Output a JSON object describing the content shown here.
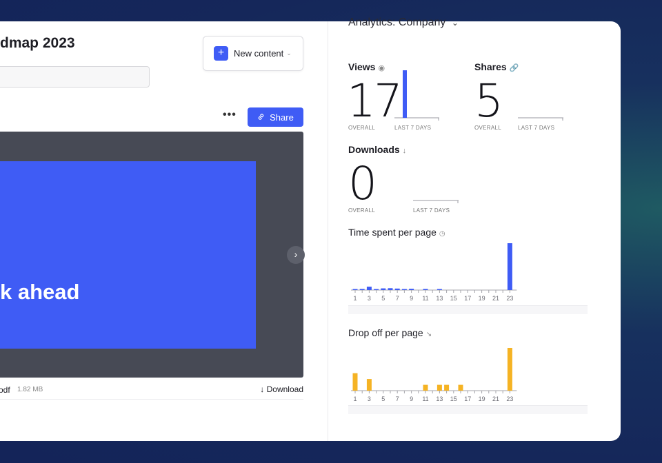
{
  "document": {
    "title": "dmap 2023",
    "slide_text": "k ahead",
    "file_name": "odf",
    "file_size": "1.82 MB",
    "download_label": "Download",
    "more_label": "•••"
  },
  "toolbar": {
    "new_content_label": "New content",
    "share_label": "Share"
  },
  "analytics": {
    "title": "Analytics: Company",
    "views": {
      "label": "Views",
      "overall": "17",
      "overall_caption": "OVERALL",
      "last7_caption": "LAST 7 DAYS",
      "last7_value": 17
    },
    "shares": {
      "label": "Shares",
      "overall": "5",
      "overall_caption": "OVERALL",
      "last7_caption": "LAST 7 DAYS",
      "last7_value": 0
    },
    "downloads": {
      "label": "Downloads",
      "overall": "0",
      "overall_caption": "OVERALL",
      "last7_caption": "LAST 7 DAYS",
      "last7_value": 0
    }
  },
  "colors": {
    "accent": "#3f5cf5",
    "drop_off": "#f5b324",
    "card_bg": "#ffffff"
  },
  "chart_data": [
    {
      "type": "bar",
      "title": "Time spent per page",
      "x": [
        1,
        2,
        3,
        4,
        5,
        6,
        7,
        8,
        9,
        10,
        11,
        12,
        13,
        14,
        15,
        16,
        17,
        18,
        19,
        20,
        21,
        22,
        23
      ],
      "x_tick_labels": [
        "1",
        "3",
        "5",
        "7",
        "9",
        "11",
        "13",
        "15",
        "17",
        "19",
        "21",
        "23"
      ],
      "values": [
        0.3,
        0.6,
        1.8,
        0.5,
        0.9,
        1.0,
        0.8,
        0.5,
        0.7,
        0,
        0.6,
        0,
        0.3,
        0,
        0,
        0,
        0,
        0,
        0,
        0,
        0,
        0,
        25
      ],
      "ylim": [
        0,
        25
      ],
      "color": "#3f5cf5",
      "grid": false
    },
    {
      "type": "bar",
      "title": "Drop off per page",
      "x": [
        1,
        2,
        3,
        4,
        5,
        6,
        7,
        8,
        9,
        10,
        11,
        12,
        13,
        14,
        15,
        16,
        17,
        18,
        19,
        20,
        21,
        22,
        23
      ],
      "x_tick_labels": [
        "1",
        "3",
        "5",
        "7",
        "9",
        "11",
        "13",
        "15",
        "17",
        "19",
        "21",
        "23"
      ],
      "values": [
        9,
        0,
        6,
        0,
        0,
        0,
        0,
        0,
        0,
        0,
        3,
        0,
        3,
        3,
        0,
        3,
        0,
        0,
        0,
        0,
        0,
        0,
        22
      ],
      "ylim": [
        0,
        22
      ],
      "color": "#f5b324",
      "grid": false
    }
  ]
}
